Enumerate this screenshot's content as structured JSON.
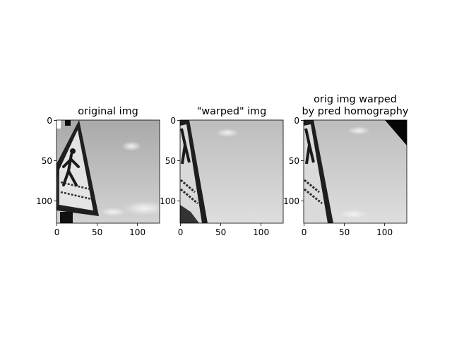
{
  "chart_data": [
    {
      "type": "image",
      "title": "original img",
      "xticks": [
        0,
        50,
        100
      ],
      "yticks": [
        0,
        50,
        100
      ],
      "xlim": [
        -0.5,
        127.5
      ],
      "ylim": [
        127.5,
        -0.5
      ],
      "colormap": "gray",
      "content": "pedestrian-crossing"
    },
    {
      "type": "image",
      "title": "\"warped\" img",
      "xticks": [
        0,
        50,
        100
      ],
      "yticks": [
        0,
        50,
        100
      ],
      "xlim": [
        -0.5,
        127.5
      ],
      "ylim": [
        127.5,
        -0.5
      ],
      "colormap": "gray",
      "content": "pedestrian-crossing"
    },
    {
      "type": "image",
      "title_lines": [
        "orig img warped",
        "by pred homography"
      ],
      "xticks": [
        0,
        50,
        100
      ],
      "yticks": [
        0,
        50,
        100
      ],
      "xlim": [
        -0.5,
        127.5
      ],
      "ylim": [
        127.5,
        -0.5
      ],
      "colormap": "gray",
      "content": "pedestrian-crossing"
    }
  ],
  "colors": {
    "sky_top": "#a8a8a8",
    "sky_bottom": "#d2d2d2",
    "sign_face": "#e6e6e6",
    "sign_border": "#2a2a2a",
    "black_fill": "#050505"
  }
}
